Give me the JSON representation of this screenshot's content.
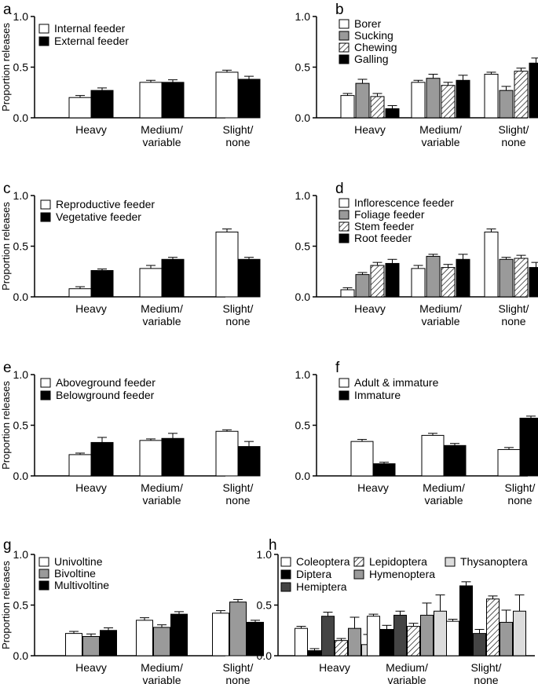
{
  "figure": {
    "ylabel": "Proportion releases",
    "yticks": [
      "0.0",
      "0.5",
      "1.0"
    ]
  },
  "colors": {
    "white": "#ffffff",
    "black": "#000000",
    "gray": "#9a9a9a",
    "darkgray": "#444444",
    "lightgray": "#dcdcdc",
    "axis": "#000000"
  },
  "chart_data": [
    {
      "type": "bar",
      "panel": "a",
      "categories": [
        "Heavy",
        "Medium/\nvariable",
        "Slight/\nnone"
      ],
      "ylim": [
        0,
        1
      ],
      "ylabel": "Proportion releases",
      "series": [
        {
          "name": "Internal feeder",
          "fill": "white",
          "values": [
            0.2,
            0.35,
            0.45
          ],
          "err": [
            0.02,
            0.02,
            0.02
          ]
        },
        {
          "name": "External feeder",
          "fill": "black",
          "values": [
            0.27,
            0.35,
            0.38
          ],
          "err": [
            0.025,
            0.025,
            0.03
          ]
        }
      ]
    },
    {
      "type": "bar",
      "panel": "b",
      "categories": [
        "Heavy",
        "Medium/\nvariable",
        "Slight/\nnone"
      ],
      "ylim": [
        0,
        1
      ],
      "ylabel": "",
      "series": [
        {
          "name": "Borer",
          "fill": "white",
          "values": [
            0.22,
            0.35,
            0.43
          ],
          "err": [
            0.02,
            0.02,
            0.02
          ]
        },
        {
          "name": "Sucking",
          "fill": "gray",
          "values": [
            0.34,
            0.39,
            0.27
          ],
          "err": [
            0.04,
            0.04,
            0.04
          ]
        },
        {
          "name": "Chewing",
          "fill": "hatch",
          "values": [
            0.21,
            0.32,
            0.46
          ],
          "err": [
            0.03,
            0.03,
            0.03
          ]
        },
        {
          "name": "Galling",
          "fill": "black",
          "values": [
            0.09,
            0.37,
            0.54
          ],
          "err": [
            0.03,
            0.05,
            0.05
          ]
        }
      ]
    },
    {
      "type": "bar",
      "panel": "c",
      "categories": [
        "Heavy",
        "Medium/\nvariable",
        "Slight/\nnone"
      ],
      "ylim": [
        0,
        1
      ],
      "ylabel": "Proportion releases",
      "series": [
        {
          "name": "Reproductive feeder",
          "fill": "white",
          "values": [
            0.08,
            0.28,
            0.64
          ],
          "err": [
            0.02,
            0.03,
            0.03
          ]
        },
        {
          "name": "Vegetative feeder",
          "fill": "black",
          "values": [
            0.26,
            0.37,
            0.37
          ],
          "err": [
            0.015,
            0.02,
            0.02
          ]
        }
      ]
    },
    {
      "type": "bar",
      "panel": "d",
      "categories": [
        "Heavy",
        "Medium/\nvariable",
        "Slight/\nnone"
      ],
      "ylim": [
        0,
        1
      ],
      "ylabel": "",
      "series": [
        {
          "name": "Inflorescence feeder",
          "fill": "white",
          "values": [
            0.07,
            0.28,
            0.64
          ],
          "err": [
            0.02,
            0.03,
            0.03
          ]
        },
        {
          "name": "Foliage feeder",
          "fill": "gray",
          "values": [
            0.22,
            0.4,
            0.37
          ],
          "err": [
            0.02,
            0.02,
            0.02
          ]
        },
        {
          "name": "Stem feeder",
          "fill": "hatch",
          "values": [
            0.31,
            0.29,
            0.38
          ],
          "err": [
            0.03,
            0.03,
            0.03
          ]
        },
        {
          "name": "Root feeder",
          "fill": "black",
          "values": [
            0.33,
            0.37,
            0.29
          ],
          "err": [
            0.04,
            0.05,
            0.05
          ]
        }
      ]
    },
    {
      "type": "bar",
      "panel": "e",
      "categories": [
        "Heavy",
        "Medium/\nvariable",
        "Slight/\nnone"
      ],
      "ylim": [
        0,
        1
      ],
      "ylabel": "Proportion releases",
      "series": [
        {
          "name": "Aboveground feeder",
          "fill": "white",
          "values": [
            0.21,
            0.35,
            0.44
          ],
          "err": [
            0.015,
            0.015,
            0.015
          ]
        },
        {
          "name": "Belowground feeder",
          "fill": "black",
          "values": [
            0.33,
            0.37,
            0.29
          ],
          "err": [
            0.05,
            0.05,
            0.05
          ]
        }
      ]
    },
    {
      "type": "bar",
      "panel": "f",
      "categories": [
        "Heavy",
        "Medium/\nvariable",
        "Slight/\nnone"
      ],
      "ylim": [
        0,
        1
      ],
      "ylabel": "",
      "series": [
        {
          "name": "Adult & immature",
          "fill": "white",
          "values": [
            0.34,
            0.4,
            0.26
          ],
          "err": [
            0.02,
            0.02,
            0.02
          ]
        },
        {
          "name": "Immature",
          "fill": "black",
          "values": [
            0.12,
            0.3,
            0.57
          ],
          "err": [
            0.015,
            0.02,
            0.02
          ]
        }
      ]
    },
    {
      "type": "bar",
      "panel": "g",
      "categories": [
        "Heavy",
        "Medium/\nvariable",
        "Slight/\nnone"
      ],
      "ylim": [
        0,
        1
      ],
      "ylabel": "Proportion releases",
      "series": [
        {
          "name": "Univoltine",
          "fill": "white",
          "values": [
            0.22,
            0.35,
            0.42
          ],
          "err": [
            0.02,
            0.025,
            0.025
          ]
        },
        {
          "name": "Bivoltine",
          "fill": "gray",
          "values": [
            0.19,
            0.28,
            0.53
          ],
          "err": [
            0.025,
            0.025,
            0.025
          ]
        },
        {
          "name": "Multivoltine",
          "fill": "black",
          "values": [
            0.25,
            0.41,
            0.33
          ],
          "err": [
            0.025,
            0.025,
            0.02
          ]
        }
      ]
    },
    {
      "type": "bar",
      "panel": "h",
      "categories": [
        "Heavy",
        "Medium/\nvariable",
        "Slight/\nnone"
      ],
      "ylim": [
        0,
        1
      ],
      "ylabel": "",
      "series": [
        {
          "name": "Coleoptera",
          "fill": "white",
          "values": [
            0.27,
            0.39,
            0.34
          ],
          "err": [
            0.02,
            0.02,
            0.02
          ]
        },
        {
          "name": "Diptera",
          "fill": "black",
          "values": [
            0.05,
            0.26,
            0.69
          ],
          "err": [
            0.02,
            0.04,
            0.04
          ]
        },
        {
          "name": "Hemiptera",
          "fill": "darkgray",
          "values": [
            0.39,
            0.4,
            0.22
          ],
          "err": [
            0.04,
            0.04,
            0.04
          ]
        },
        {
          "name": "Lepidoptera",
          "fill": "hatch",
          "values": [
            0.15,
            0.29,
            0.56
          ],
          "err": [
            0.02,
            0.03,
            0.03
          ]
        },
        {
          "name": "Hymenoptera",
          "fill": "gray",
          "values": [
            0.27,
            0.4,
            0.33
          ],
          "err": [
            0.11,
            0.12,
            0.12
          ]
        },
        {
          "name": "Thysanoptera",
          "fill": "lightgray",
          "values": [
            0.11,
            0.44,
            0.44
          ],
          "err": [
            0.1,
            0.16,
            0.16
          ]
        }
      ]
    }
  ]
}
